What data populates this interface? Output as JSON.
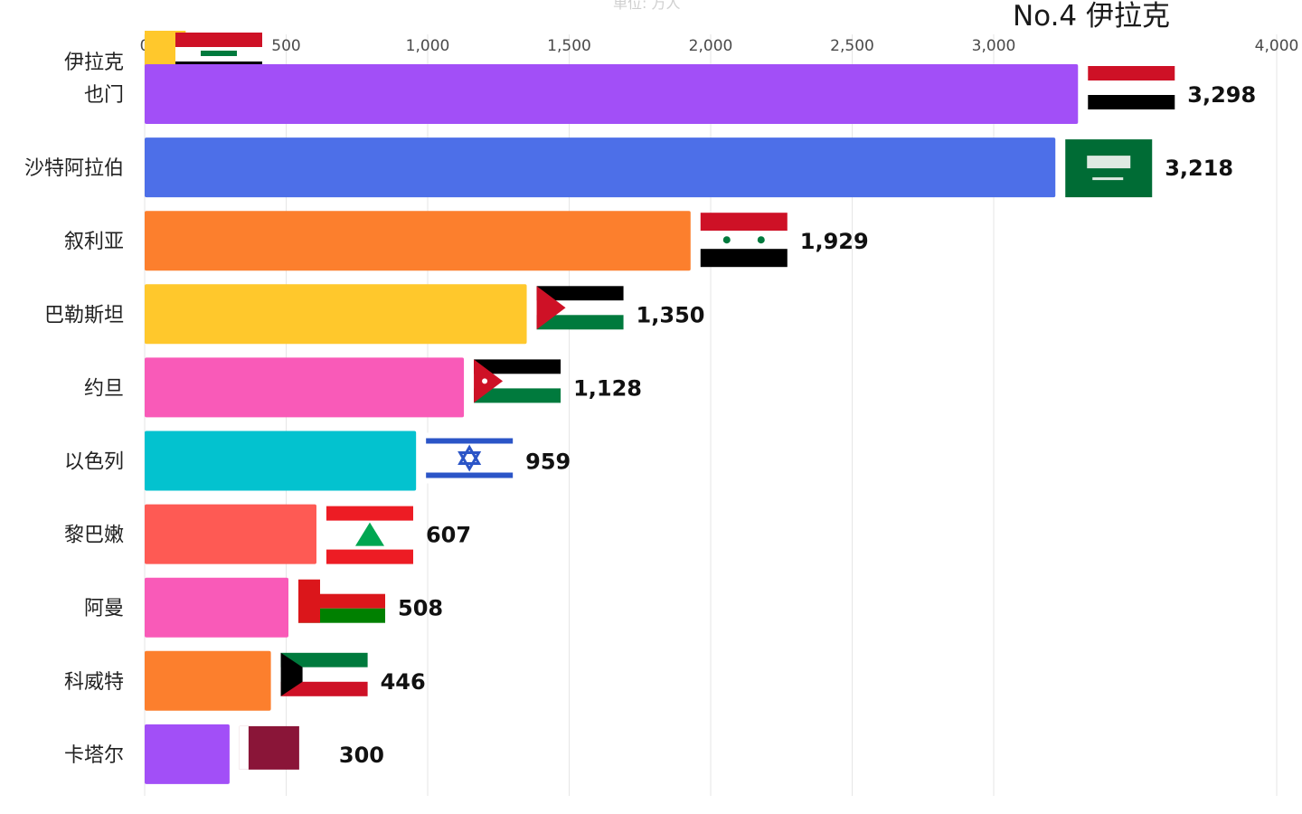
{
  "subtitle": "单位: 万人",
  "rank_title": "No.4 伊拉克",
  "chart_data": {
    "type": "bar",
    "orientation": "horizontal",
    "xlim": [
      0,
      4000
    ],
    "x_ticks": [
      0,
      500,
      1000,
      1500,
      2000,
      2500,
      3000,
      4000
    ],
    "x_tick_labels": [
      "0",
      "500",
      "1,000",
      "1,500",
      "2,000",
      "2,500",
      "3,000",
      "4,000"
    ],
    "grid": true,
    "series": [
      {
        "category": "也门",
        "value": 3298,
        "value_label": "3,298",
        "color": "#a24ff7",
        "flag": "yemen-flag"
      },
      {
        "category": "沙特阿拉伯",
        "value": 3218,
        "value_label": "3,218",
        "color": "#4d6fe8",
        "flag": "saudi-flag"
      },
      {
        "category": "叙利亚",
        "value": 1929,
        "value_label": "1,929",
        "color": "#fc7f2d",
        "flag": "syria-flag"
      },
      {
        "category": "巴勒斯坦",
        "value": 1350,
        "value_label": "1,350",
        "color": "#ffc82c",
        "flag": "palestine-flag"
      },
      {
        "category": "约旦",
        "value": 1128,
        "value_label": "1,128",
        "color": "#f95ab8",
        "flag": "jordan-flag"
      },
      {
        "category": "以色列",
        "value": 959,
        "value_label": "959",
        "color": "#03c2cf",
        "flag": "israel-flag"
      },
      {
        "category": "黎巴嫩",
        "value": 607,
        "value_label": "607",
        "color": "#fe5a54",
        "flag": "lebanon-flag"
      },
      {
        "category": "阿曼",
        "value": 508,
        "value_label": "508",
        "color": "#f95ab8",
        "flag": "oman-flag"
      },
      {
        "category": "科威特",
        "value": 446,
        "value_label": "446",
        "color": "#fc7f2d",
        "flag": "kuwait-flag"
      },
      {
        "category": "卡塔尔",
        "value": 300,
        "value_label": "300",
        "color": "#a24ff7",
        "flag": "qatar-flag"
      }
    ],
    "entering": {
      "category": "伊拉克",
      "value": 145,
      "color": "#ffc82c",
      "flag": "iraq-flag"
    }
  }
}
